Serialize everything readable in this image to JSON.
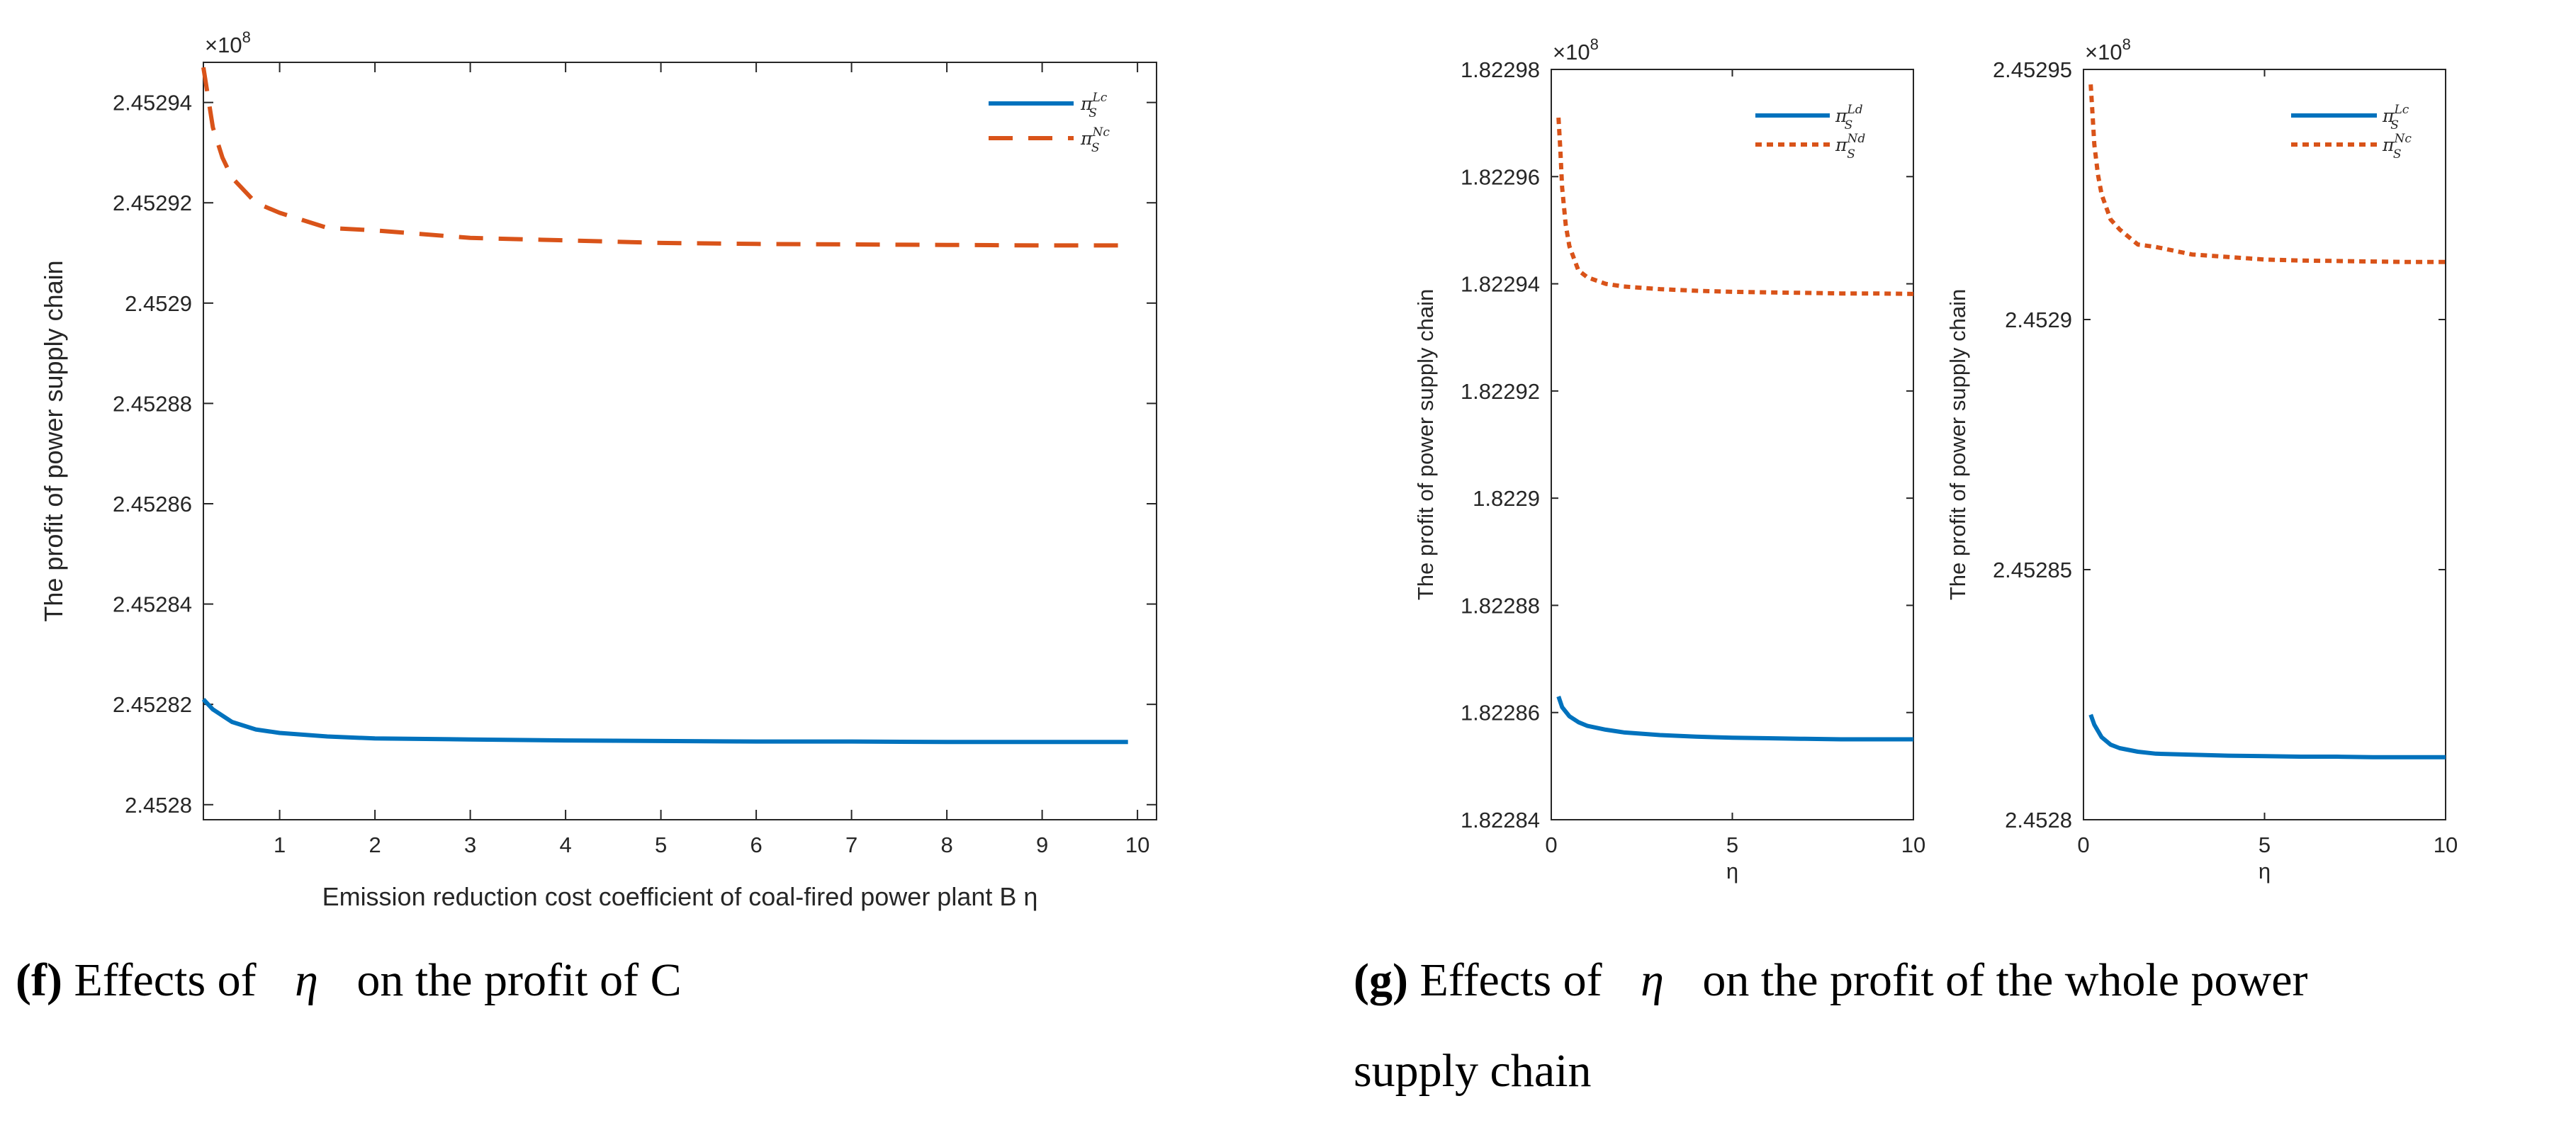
{
  "chart_data": [
    {
      "id": "f",
      "type": "line",
      "title": "",
      "xlabel": "Emission reduction cost coefficient of coal-fired power plant B η",
      "ylabel": "The profit of power supply chain",
      "exponent_label": "×10",
      "exponent_power": "8",
      "xlim": [
        0.2,
        10.2
      ],
      "ylim": [
        2.452797,
        2.452948
      ],
      "x_ticks": [
        1,
        2,
        3,
        4,
        5,
        6,
        7,
        8,
        9,
        10
      ],
      "y_ticks": [
        2.4528,
        2.45282,
        2.45284,
        2.45286,
        2.45288,
        2.4529,
        2.45292,
        2.45294
      ],
      "y_tick_labels": [
        "2.4528",
        "2.45282",
        "2.45284",
        "2.45286",
        "2.45288",
        "2.4529",
        "2.45292",
        "2.45294"
      ],
      "legend": {
        "position": "top-right"
      },
      "series": [
        {
          "name": "π",
          "sup": "Lc",
          "sub": "S",
          "color": "#0072BD",
          "dash": "solid",
          "x": [
            0.2,
            0.3,
            0.5,
            0.75,
            1,
            1.5,
            2,
            3,
            4,
            5,
            6,
            7,
            8,
            9,
            9.9
          ],
          "y": [
            2.452821,
            2.452819,
            2.4528165,
            2.452815,
            2.4528143,
            2.4528136,
            2.4528132,
            2.452813,
            2.4528128,
            2.4528127,
            2.4528126,
            2.4528126,
            2.4528125,
            2.4528125,
            2.4528125
          ]
        },
        {
          "name": "π",
          "sup": "Nc",
          "sub": "S",
          "color": "#D95319",
          "dash": "dashed",
          "x": [
            0.2,
            0.25,
            0.3,
            0.4,
            0.5,
            0.75,
            1,
            1.5,
            2,
            3,
            4,
            5,
            6,
            7,
            8,
            9,
            9.9
          ],
          "y": [
            2.452947,
            2.452941,
            2.452935,
            2.452929,
            2.452925,
            2.45292,
            2.452918,
            2.452915,
            2.4529145,
            2.452913,
            2.4529125,
            2.452912,
            2.4529118,
            2.4529117,
            2.4529116,
            2.4529115,
            2.4529115
          ]
        }
      ]
    },
    {
      "id": "g1",
      "type": "line",
      "title": "",
      "xlabel": "η",
      "ylabel": "The profit of power supply chain",
      "exponent_label": "×10",
      "exponent_power": "8",
      "xlim": [
        0,
        10
      ],
      "ylim": [
        1.82284,
        1.82298
      ],
      "x_ticks": [
        0,
        5,
        10
      ],
      "y_ticks": [
        1.82284,
        1.82286,
        1.82288,
        1.8229,
        1.82292,
        1.82294,
        1.82296,
        1.82298
      ],
      "y_tick_labels": [
        "1.82284",
        "1.82286",
        "1.82288",
        "1.8229",
        "1.82292",
        "1.82294",
        "1.82296",
        "1.82298"
      ],
      "legend": {
        "position": "top-right"
      },
      "series": [
        {
          "name": "π",
          "sup": "Ld",
          "sub": "S",
          "color": "#0072BD",
          "dash": "solid",
          "x": [
            0.2,
            0.3,
            0.5,
            0.75,
            1,
            1.5,
            2,
            3,
            4,
            5,
            6,
            7,
            8,
            9,
            10
          ],
          "y": [
            1.822863,
            1.822861,
            1.8228593,
            1.8228582,
            1.8228575,
            1.8228568,
            1.8228563,
            1.8228558,
            1.8228555,
            1.8228553,
            1.8228552,
            1.8228551,
            1.822855,
            1.822855,
            1.822855
          ]
        },
        {
          "name": "π",
          "sup": "Nd",
          "sub": "S",
          "color": "#D95319",
          "dash": "dotted",
          "x": [
            0.2,
            0.25,
            0.3,
            0.4,
            0.5,
            0.75,
            1,
            1.5,
            2,
            3,
            4,
            5,
            6,
            7,
            8,
            9,
            10
          ],
          "y": [
            1.822971,
            1.822965,
            1.822958,
            1.822951,
            1.822947,
            1.8229425,
            1.8229412,
            1.82294,
            1.8229395,
            1.822939,
            1.8229387,
            1.8229385,
            1.8229384,
            1.8229383,
            1.8229382,
            1.8229382,
            1.8229381
          ]
        }
      ]
    },
    {
      "id": "g2",
      "type": "line",
      "title": "",
      "xlabel": "η",
      "ylabel": "The profit of power supply chain",
      "exponent_label": "×10",
      "exponent_power": "8",
      "xlim": [
        0,
        10
      ],
      "ylim": [
        2.4528,
        2.45295
      ],
      "x_ticks": [
        0,
        5,
        10
      ],
      "y_ticks": [
        2.4528,
        2.45285,
        2.4529,
        2.45295
      ],
      "y_tick_labels": [
        "2.4528",
        "2.45285",
        "2.4529",
        "2.45295"
      ],
      "legend": {
        "position": "top-right"
      },
      "series": [
        {
          "name": "π",
          "sup": "Lc",
          "sub": "S",
          "color": "#0072BD",
          "dash": "solid",
          "x": [
            0.2,
            0.3,
            0.5,
            0.75,
            1,
            1.5,
            2,
            3,
            4,
            5,
            6,
            7,
            8,
            9,
            10
          ],
          "y": [
            2.452821,
            2.452819,
            2.4528165,
            2.452815,
            2.4528143,
            2.4528136,
            2.4528132,
            2.452813,
            2.4528128,
            2.4528127,
            2.4528126,
            2.4528126,
            2.4528125,
            2.4528125,
            2.4528125
          ]
        },
        {
          "name": "π",
          "sup": "Nc",
          "sub": "S",
          "color": "#D95319",
          "dash": "dotted",
          "x": [
            0.2,
            0.25,
            0.3,
            0.4,
            0.5,
            0.75,
            1,
            1.5,
            2,
            3,
            4,
            5,
            6,
            7,
            8,
            9,
            10
          ],
          "y": [
            2.452947,
            2.452941,
            2.452935,
            2.452929,
            2.452925,
            2.45292,
            2.452918,
            2.452915,
            2.4529145,
            2.452913,
            2.4529125,
            2.452912,
            2.4529118,
            2.4529117,
            2.4529116,
            2.4529115,
            2.4529115
          ]
        }
      ]
    }
  ],
  "captions": {
    "f": {
      "label": "(f)",
      "before": " Effects of ",
      "eta": "η",
      "after": " on the profit of C"
    },
    "g": {
      "label": "(g)",
      "before": " Effects of ",
      "eta": "η",
      "after": " on the profit of the whole power",
      "line2": "supply chain"
    }
  }
}
